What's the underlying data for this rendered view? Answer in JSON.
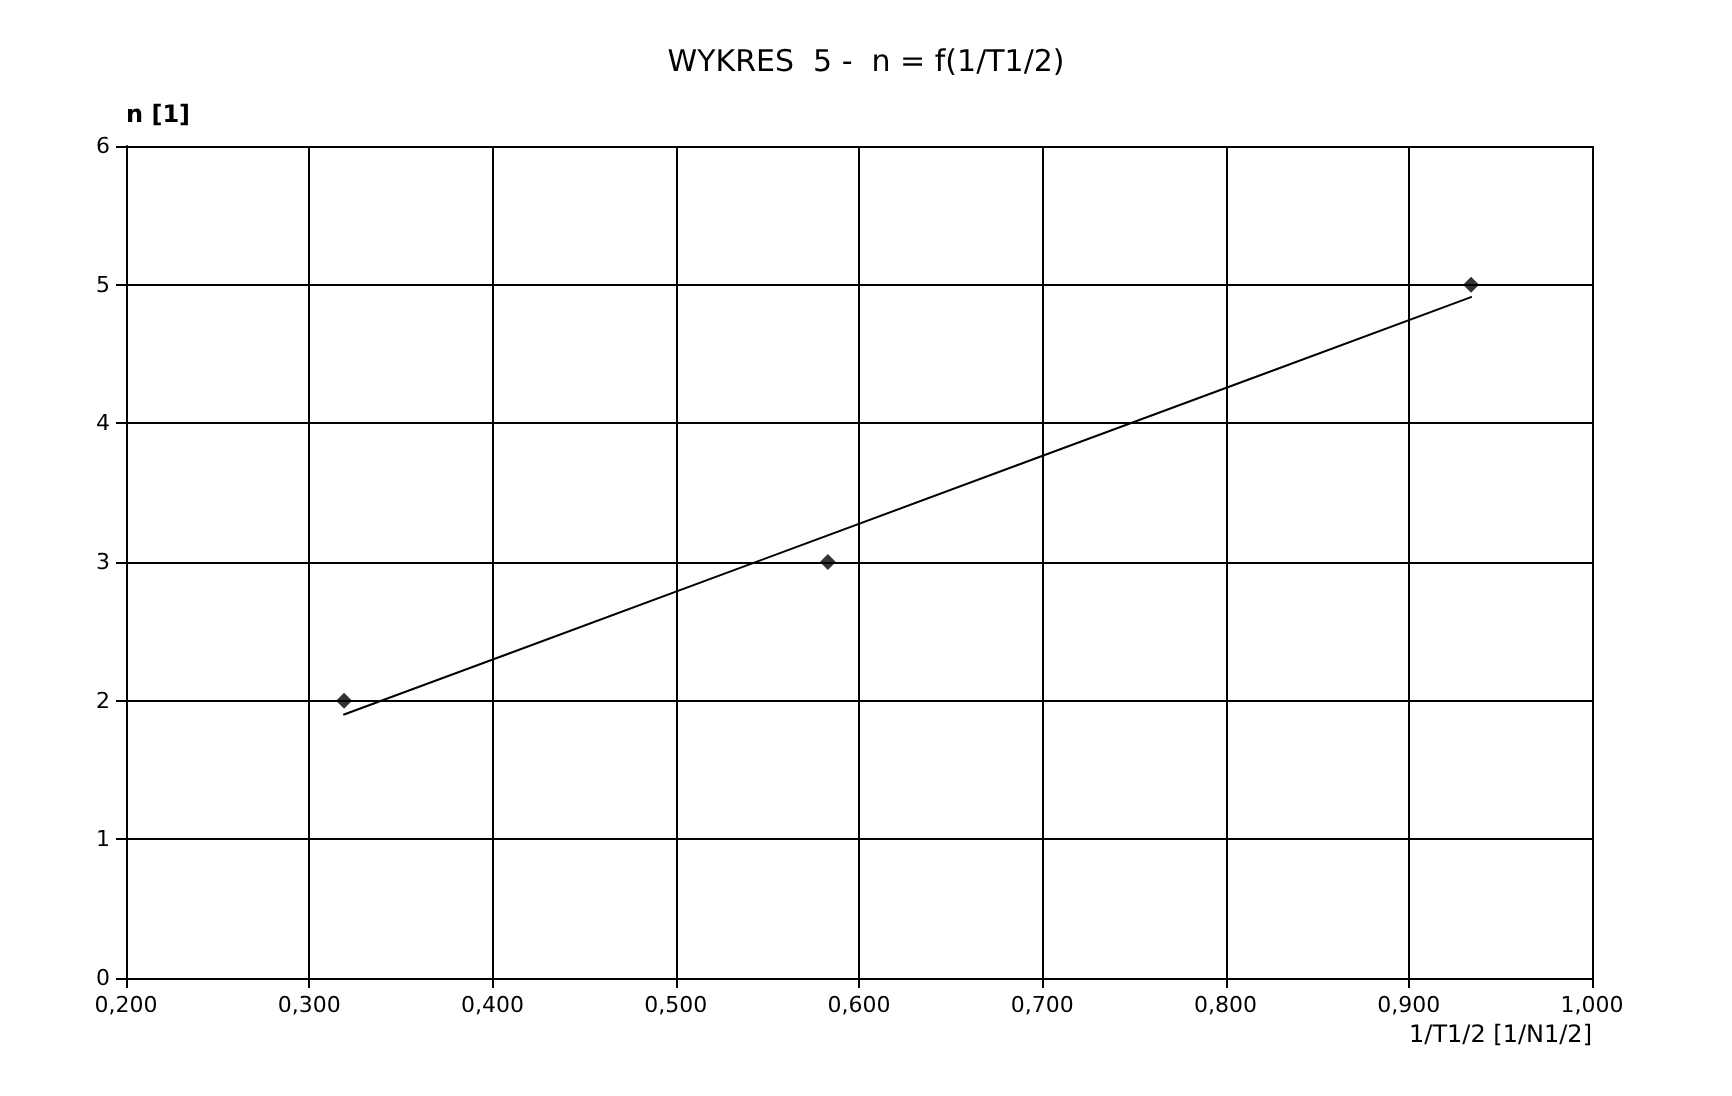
{
  "chart_data": {
    "type": "scatter",
    "title": "WYKRES  5 -  n = f(1/T1/2)",
    "xlabel": "1/T1/2 [1/N1/2]",
    "ylabel": "n [1]",
    "x": [
      0.319,
      0.583,
      0.934
    ],
    "series": [
      {
        "color": "#000000",
        "values": [
          2,
          3,
          5
        ],
        "marker": "diamond"
      },
      {
        "type": "line",
        "color": "#000000",
        "x": [
          0.319,
          0.934
        ],
        "values": [
          1.9,
          4.91
        ],
        "marker": "none",
        "line_style": "solid"
      }
    ],
    "xlim": [
      0.2,
      1.0
    ],
    "xticks": [
      {
        "value": 0.2,
        "label": "0,200"
      },
      {
        "value": 0.3,
        "label": "0,300"
      },
      {
        "value": 0.4,
        "label": "0,400"
      },
      {
        "value": 0.5,
        "label": "0,500"
      },
      {
        "value": 0.6,
        "label": "0,600"
      },
      {
        "value": 0.7,
        "label": "0,700"
      },
      {
        "value": 0.8,
        "label": "0,800"
      },
      {
        "value": 0.9,
        "label": "0,900"
      },
      {
        "value": 1.0,
        "label": "1,000"
      }
    ],
    "ylim": [
      0,
      6
    ],
    "yticks": [
      0,
      1,
      2,
      3,
      4,
      5,
      6
    ],
    "grid": true
  }
}
